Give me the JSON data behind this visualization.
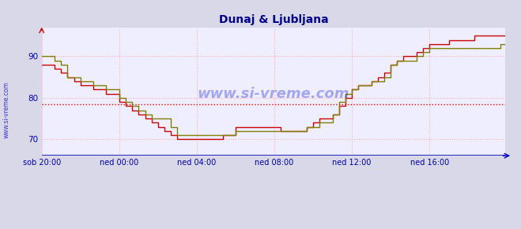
{
  "title": "Dunaj & Ljubljana",
  "title_color": "#00008B",
  "bg_color": "#d8d8e8",
  "plot_bg_color": "#eeeeff",
  "grid_color": "#ffaaaa",
  "axis_color": "#0000bb",
  "tick_label_color": "#0000aa",
  "hline_y": 78.5,
  "hline_color": "#ff0000",
  "ylim": [
    66,
    97
  ],
  "yticks": [
    70,
    80,
    90
  ],
  "xtick_labels": [
    "sob 20:00",
    "ned 00:00",
    "ned 04:00",
    "ned 08:00",
    "ned 12:00",
    "ned 16:00"
  ],
  "xtick_positions": [
    0,
    48,
    96,
    144,
    192,
    240
  ],
  "total_points": 288,
  "series1_color": "#cc0000",
  "series2_color": "#808000",
  "watermark_text": "www.si-vreme.com",
  "watermark_color": "#0000cc",
  "left_label": "www.si-vreme.com",
  "series1": [
    88,
    88,
    88,
    88,
    88,
    88,
    88,
    88,
    87,
    87,
    87,
    87,
    86,
    86,
    86,
    86,
    85,
    85,
    85,
    85,
    84,
    84,
    84,
    84,
    83,
    83,
    83,
    83,
    83,
    83,
    83,
    83,
    82,
    82,
    82,
    82,
    82,
    82,
    82,
    82,
    81,
    81,
    81,
    81,
    81,
    81,
    81,
    81,
    79,
    79,
    79,
    79,
    78,
    78,
    78,
    78,
    77,
    77,
    77,
    77,
    76,
    76,
    76,
    76,
    75,
    75,
    75,
    75,
    74,
    74,
    74,
    74,
    73,
    73,
    73,
    73,
    72,
    72,
    72,
    72,
    71,
    71,
    71,
    71,
    70,
    70,
    70,
    70,
    70,
    70,
    70,
    70,
    70,
    70,
    70,
    70,
    70,
    70,
    70,
    70,
    70,
    70,
    70,
    70,
    70,
    70,
    70,
    70,
    70,
    70,
    70,
    70,
    71,
    71,
    71,
    71,
    71,
    71,
    71,
    71,
    73,
    73,
    73,
    73,
    73,
    73,
    73,
    73,
    73,
    73,
    73,
    73,
    73,
    73,
    73,
    73,
    73,
    73,
    73,
    73,
    73,
    73,
    73,
    73,
    73,
    73,
    73,
    73,
    72,
    72,
    72,
    72,
    72,
    72,
    72,
    72,
    72,
    72,
    72,
    72,
    72,
    72,
    72,
    72,
    73,
    73,
    73,
    73,
    74,
    74,
    74,
    74,
    75,
    75,
    75,
    75,
    75,
    75,
    75,
    75,
    76,
    76,
    76,
    76,
    78,
    78,
    78,
    78,
    80,
    80,
    80,
    80,
    82,
    82,
    82,
    82,
    83,
    83,
    83,
    83,
    83,
    83,
    83,
    83,
    84,
    84,
    84,
    84,
    85,
    85,
    85,
    85,
    86,
    86,
    86,
    86,
    88,
    88,
    88,
    88,
    89,
    89,
    89,
    89,
    90,
    90,
    90,
    90,
    90,
    90,
    90,
    90,
    91,
    91,
    91,
    91,
    92,
    92,
    92,
    92,
    93,
    93,
    93,
    93,
    93,
    93,
    93,
    93,
    93,
    93,
    93,
    93,
    94,
    94,
    94,
    94,
    94,
    94,
    94,
    94,
    94,
    94,
    94,
    94,
    94,
    94,
    94,
    94,
    95,
    95,
    95,
    95,
    95,
    95,
    95,
    95,
    95,
    95,
    95,
    95,
    95,
    95,
    95,
    95,
    95,
    95,
    95,
    95
  ],
  "series2": [
    90,
    90,
    90,
    90,
    90,
    90,
    90,
    90,
    89,
    89,
    89,
    89,
    88,
    88,
    88,
    88,
    85,
    85,
    85,
    85,
    85,
    85,
    85,
    85,
    84,
    84,
    84,
    84,
    84,
    84,
    84,
    84,
    83,
    83,
    83,
    83,
    83,
    83,
    83,
    83,
    82,
    82,
    82,
    82,
    82,
    82,
    82,
    82,
    80,
    80,
    80,
    80,
    79,
    79,
    79,
    79,
    78,
    78,
    78,
    78,
    77,
    77,
    77,
    77,
    76,
    76,
    76,
    76,
    75,
    75,
    75,
    75,
    75,
    75,
    75,
    75,
    75,
    75,
    75,
    75,
    73,
    73,
    73,
    73,
    71,
    71,
    71,
    71,
    71,
    71,
    71,
    71,
    71,
    71,
    71,
    71,
    71,
    71,
    71,
    71,
    71,
    71,
    71,
    71,
    71,
    71,
    71,
    71,
    71,
    71,
    71,
    71,
    71,
    71,
    71,
    71,
    71,
    71,
    71,
    71,
    72,
    72,
    72,
    72,
    72,
    72,
    72,
    72,
    72,
    72,
    72,
    72,
    72,
    72,
    72,
    72,
    72,
    72,
    72,
    72,
    72,
    72,
    72,
    72,
    72,
    72,
    72,
    72,
    72,
    72,
    72,
    72,
    72,
    72,
    72,
    72,
    72,
    72,
    72,
    72,
    72,
    72,
    72,
    72,
    73,
    73,
    73,
    73,
    73,
    73,
    73,
    73,
    74,
    74,
    74,
    74,
    74,
    74,
    74,
    74,
    76,
    76,
    76,
    76,
    79,
    79,
    79,
    79,
    81,
    81,
    81,
    81,
    82,
    82,
    82,
    82,
    83,
    83,
    83,
    83,
    83,
    83,
    83,
    83,
    84,
    84,
    84,
    84,
    84,
    84,
    84,
    84,
    85,
    85,
    85,
    85,
    88,
    88,
    88,
    88,
    89,
    89,
    89,
    89,
    89,
    89,
    89,
    89,
    89,
    89,
    89,
    89,
    90,
    90,
    90,
    90,
    91,
    91,
    91,
    91,
    92,
    92,
    92,
    92,
    92,
    92,
    92,
    92,
    92,
    92,
    92,
    92,
    92,
    92,
    92,
    92,
    92,
    92,
    92,
    92,
    92,
    92,
    92,
    92,
    92,
    92,
    92,
    92,
    92,
    92,
    92,
    92,
    92,
    92,
    92,
    92,
    92,
    92,
    92,
    92,
    92,
    92,
    92,
    92,
    93,
    93,
    93,
    93
  ]
}
